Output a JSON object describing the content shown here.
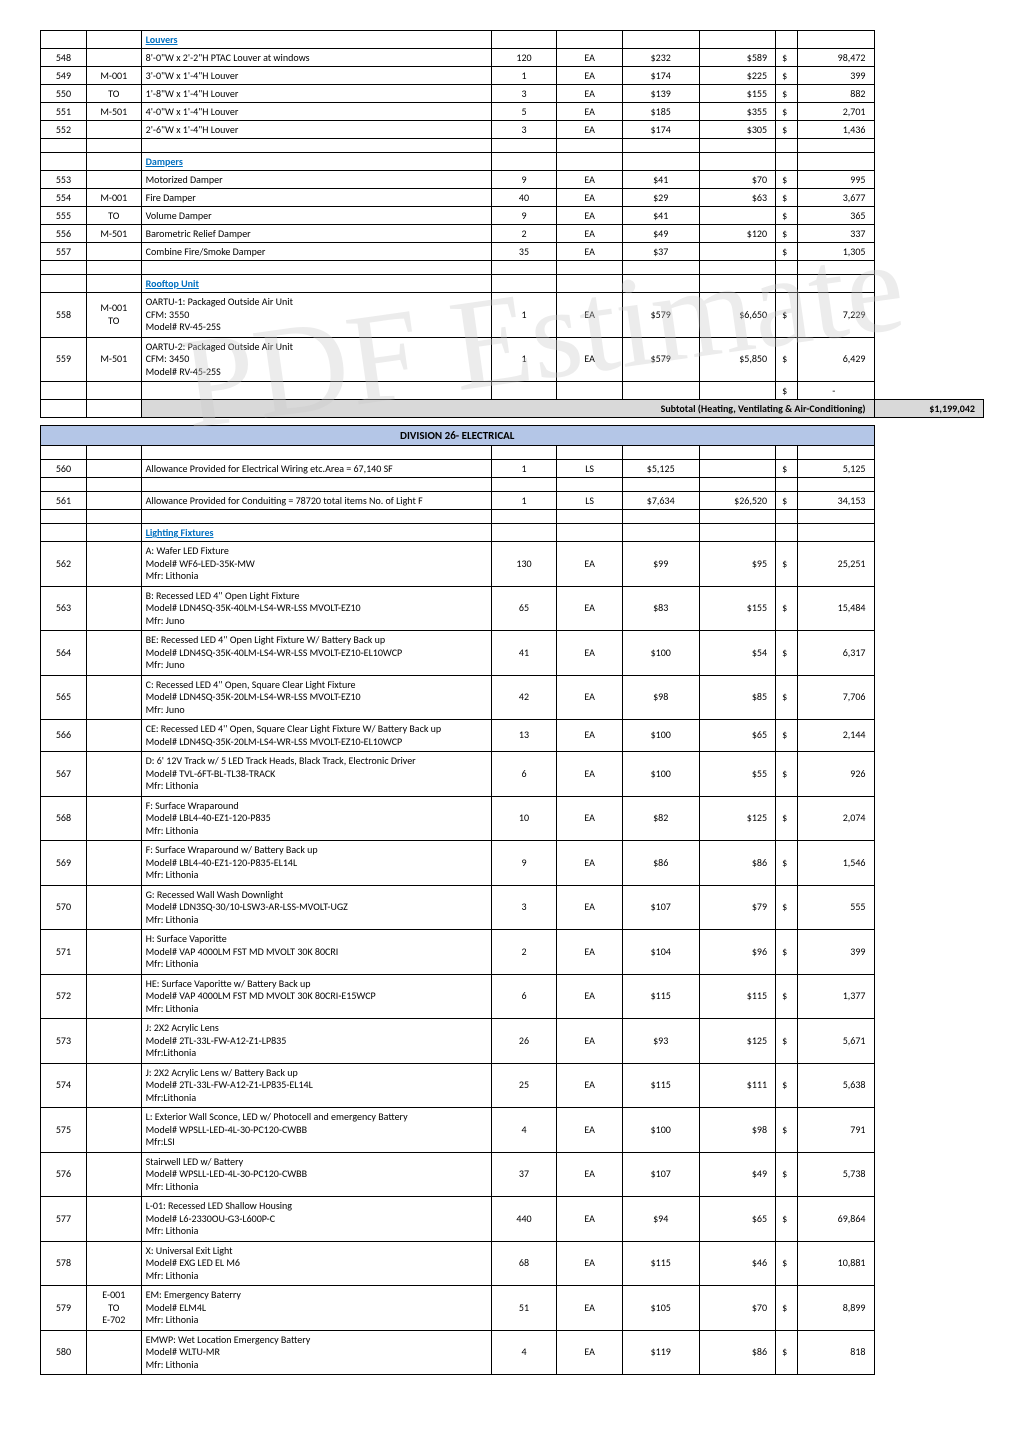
{
  "watermark": "PDF Estimate",
  "sections": {
    "louvers": {
      "header": "Louvers",
      "rows": [
        {
          "n": "548",
          "ref": "",
          "d": "8'-0\"W x 2'-2\"H PTAC Louver at windows",
          "q": "120",
          "u": "EA",
          "r": "$232",
          "m": "$589",
          "c": "$",
          "a": "98,472"
        },
        {
          "n": "549",
          "ref": "M-001",
          "d": "3'-0\"W x 1'-4\"H Louver",
          "q": "1",
          "u": "EA",
          "r": "$174",
          "m": "$225",
          "c": "$",
          "a": "399"
        },
        {
          "n": "550",
          "ref": "TO",
          "d": "1'-8\"W x 1'-4\"H Louver",
          "q": "3",
          "u": "EA",
          "r": "$139",
          "m": "$155",
          "c": "$",
          "a": "882"
        },
        {
          "n": "551",
          "ref": "M-501",
          "d": "4'-0\"W x 1'-4\"H Louver",
          "q": "5",
          "u": "EA",
          "r": "$185",
          "m": "$355",
          "c": "$",
          "a": "2,701"
        },
        {
          "n": "552",
          "ref": "",
          "d": "2'-6\"W x 1'-4\"H Louver",
          "q": "3",
          "u": "EA",
          "r": "$174",
          "m": "$305",
          "c": "$",
          "a": "1,436"
        }
      ]
    },
    "dampers": {
      "header": "Dampers",
      "rows": [
        {
          "n": "553",
          "ref": "",
          "d": "Motorized Damper",
          "q": "9",
          "u": "EA",
          "r": "$41",
          "m": "$70",
          "c": "$",
          "a": "995"
        },
        {
          "n": "554",
          "ref": "M-001",
          "d": "Fire Damper",
          "q": "40",
          "u": "EA",
          "r": "$29",
          "m": "$63",
          "c": "$",
          "a": "3,677"
        },
        {
          "n": "555",
          "ref": "TO",
          "d": "Volume Damper",
          "q": "9",
          "u": "EA",
          "r": "$41",
          "m": "",
          "c": "$",
          "a": "365"
        },
        {
          "n": "556",
          "ref": "M-501",
          "d": "Barometric Relief Damper",
          "q": "2",
          "u": "EA",
          "r": "$49",
          "m": "$120",
          "c": "$",
          "a": "337"
        },
        {
          "n": "557",
          "ref": "",
          "d": "Combine Fire/Smoke Damper",
          "q": "35",
          "u": "EA",
          "r": "$37",
          "m": "",
          "c": "$",
          "a": "1,305"
        }
      ]
    },
    "rooftop": {
      "header": "Rooftop Unit",
      "rows": [
        {
          "n": "558",
          "ref": "M-001\nTO",
          "d": "OARTU-1: Packaged Outside Air Unit\nCFM: 3550\nModel# RV-45-25S",
          "q": "1",
          "u": "EA",
          "r": "$579",
          "m": "$6,650",
          "c": "$",
          "a": "7,229"
        },
        {
          "n": "559",
          "ref": "M-501",
          "d": "OARTU-2: Packaged Outside Air Unit\nCFM: 3450\nModel# RV-45-25S",
          "q": "1",
          "u": "EA",
          "r": "$579",
          "m": "$5,850",
          "c": "$",
          "a": "6,429"
        }
      ]
    },
    "hvac_subtotal": {
      "label": "Subtotal (Heating, Ventilating & Air-Conditioning)",
      "amount": "$1,199,042",
      "dash": "-",
      "cur": "$"
    },
    "division26": {
      "title": "DIVISION 26- ELECTRICAL"
    },
    "elec_allow": {
      "rows": [
        {
          "n": "560",
          "ref": "",
          "d": "Allowance Provided for Electrical Wiring etc.Area = 67,140 SF",
          "q": "1",
          "u": "LS",
          "r": "$5,125",
          "m": "",
          "c": "$",
          "a": "5,125"
        },
        {
          "n": "561",
          "ref": "",
          "d": "Allowance Provided for Conduiting  = 78720 total items No. of Light F",
          "q": "1",
          "u": "LS",
          "r": "$7,634",
          "m": "$26,520",
          "c": "$",
          "a": "34,153"
        }
      ]
    },
    "lighting": {
      "header": "Lighting Fixtures",
      "rows": [
        {
          "n": "562",
          "ref": "",
          "d": "A: Wafer LED Fixture\nModel# WF6-LED-35K-MW\nMfr: Lithonia",
          "q": "130",
          "u": "EA",
          "r": "$99",
          "m": "$95",
          "c": "$",
          "a": "25,251"
        },
        {
          "n": "563",
          "ref": "",
          "d": "B: Recessed LED 4'' Open Light Fixture\nModel# LDN4SQ-35K-40LM-LS4-WR-LSS MVOLT-EZ10\nMfr: Juno",
          "q": "65",
          "u": "EA",
          "r": "$83",
          "m": "$155",
          "c": "$",
          "a": "15,484"
        },
        {
          "n": "564",
          "ref": "",
          "d": "BE: Recessed LED 4'' Open Light Fixture W/ Battery Back up\nModel# LDN4SQ-35K-40LM-LS4-WR-LSS MVOLT-EZ10-EL10WCP\nMfr: Juno",
          "q": "41",
          "u": "EA",
          "r": "$100",
          "m": "$54",
          "c": "$",
          "a": "6,317"
        },
        {
          "n": "565",
          "ref": "",
          "d": "C: Recessed LED 4'' Open, Square Clear Light Fixture\nModel# LDN4SQ-35K-20LM-LS4-WR-LSS MVOLT-EZ10\nMfr: Juno",
          "q": "42",
          "u": "EA",
          "r": "$98",
          "m": "$85",
          "c": "$",
          "a": "7,706"
        },
        {
          "n": "566",
          "ref": "",
          "d": "CE: Recessed LED 4'' Open, Square Clear Light Fixture W/ Battery Back up\nModel# LDN4SQ-35K-20LM-LS4-WR-LSS MVOLT-EZ10-EL10WCP",
          "q": "13",
          "u": "EA",
          "r": "$100",
          "m": "$65",
          "c": "$",
          "a": "2,144"
        },
        {
          "n": "567",
          "ref": "",
          "d": "D: 6' 12V Track w/ 5 LED Track Heads, Black Track, Electronic Driver\nModel# TVL-6FT-BL-TL38-TRACK\nMfr: Lithonia",
          "q": "6",
          "u": "EA",
          "r": "$100",
          "m": "$55",
          "c": "$",
          "a": "926"
        },
        {
          "n": "568",
          "ref": "",
          "d": "F: Surface Wraparound\nModel# LBL4-40-EZ1-120-P835\nMfr: Lithonia",
          "q": "10",
          "u": "EA",
          "r": "$82",
          "m": "$125",
          "c": "$",
          "a": "2,074"
        },
        {
          "n": "569",
          "ref": "",
          "d": "F: Surface Wraparound w/ Battery Back up\nModel# LBL4-40-EZ1-120-P835-EL14L\nMfr: Lithonia",
          "q": "9",
          "u": "EA",
          "r": "$86",
          "m": "$86",
          "c": "$",
          "a": "1,546"
        },
        {
          "n": "570",
          "ref": "",
          "d": "G: Recessed Wall Wash Downlight\nModel# LDN3SQ-30/10-LSW3-AR-LSS-MVOLT-UGZ\nMfr: Lithonia",
          "q": "3",
          "u": "EA",
          "r": "$107",
          "m": "$79",
          "c": "$",
          "a": "555"
        },
        {
          "n": "571",
          "ref": "",
          "d": "H: Surface Vaporitte\nModel# VAP 4000LM FST MD MVOLT 30K 80CRI\nMfr: Lithonia",
          "q": "2",
          "u": "EA",
          "r": "$104",
          "m": "$96",
          "c": "$",
          "a": "399"
        },
        {
          "n": "572",
          "ref": "",
          "d": "HE: Surface Vaporitte w/ Battery Back up\nModel# VAP 4000LM FST MD MVOLT 30K 80CRI-E15WCP\nMfr: Lithonia",
          "q": "6",
          "u": "EA",
          "r": "$115",
          "m": "$115",
          "c": "$",
          "a": "1,377"
        },
        {
          "n": "573",
          "ref": "",
          "d": "J: 2X2 Acrylic Lens\nModel# 2TL-33L-FW-A12-Z1-LP835\nMfr:Lithonia",
          "q": "26",
          "u": "EA",
          "r": "$93",
          "m": "$125",
          "c": "$",
          "a": "5,671"
        },
        {
          "n": "574",
          "ref": "",
          "d": "J: 2X2 Acrylic Lens w/ Battery Back up\nModel# 2TL-33L-FW-A12-Z1-LP835-EL14L\nMfr:Lithonia",
          "q": "25",
          "u": "EA",
          "r": "$115",
          "m": "$111",
          "c": "$",
          "a": "5,638"
        },
        {
          "n": "575",
          "ref": "",
          "d": "L: Exterior Wall Sconce, LED w/ Photocell and emergency Battery\nModel# WPSLL-LED-4L-30-PC120-CWBB\nMfr:LSI",
          "q": "4",
          "u": "EA",
          "r": "$100",
          "m": "$98",
          "c": "$",
          "a": "791"
        },
        {
          "n": "576",
          "ref": "",
          "d": "Stairwell LED w/ Battery\nModel# WPSLL-LED-4L-30-PC120-CWBB\nMfr: Lithonia",
          "q": "37",
          "u": "EA",
          "r": "$107",
          "m": "$49",
          "c": "$",
          "a": "5,738"
        },
        {
          "n": "577",
          "ref": "",
          "d": "L-01: Recessed LED Shallow Housing\nModel# L6-2330OU-G3-L600P-C\nMfr: Lithonia",
          "q": "440",
          "u": "EA",
          "r": "$94",
          "m": "$65",
          "c": "$",
          "a": "69,864"
        },
        {
          "n": "578",
          "ref": "",
          "d": "X: Universal Exit Light\nModel# EXG LED EL M6\nMfr: Lithonia",
          "q": "68",
          "u": "EA",
          "r": "$115",
          "m": "$46",
          "c": "$",
          "a": "10,881"
        },
        {
          "n": "579",
          "ref": "E-001\nTO\nE-702",
          "d": "EM: Emergency Baterry\nModel# ELM4L\nMfr: Lithonia",
          "q": "51",
          "u": "EA",
          "r": "$105",
          "m": "$70",
          "c": "$",
          "a": "8,899"
        },
        {
          "n": "580",
          "ref": "",
          "d": "EMWP: Wet Location Emergency Battery\nModel# WLTU-MR\nMfr: Lithonia",
          "q": "4",
          "u": "EA",
          "r": "$119",
          "m": "$86",
          "c": "$",
          "a": "818"
        }
      ]
    }
  }
}
